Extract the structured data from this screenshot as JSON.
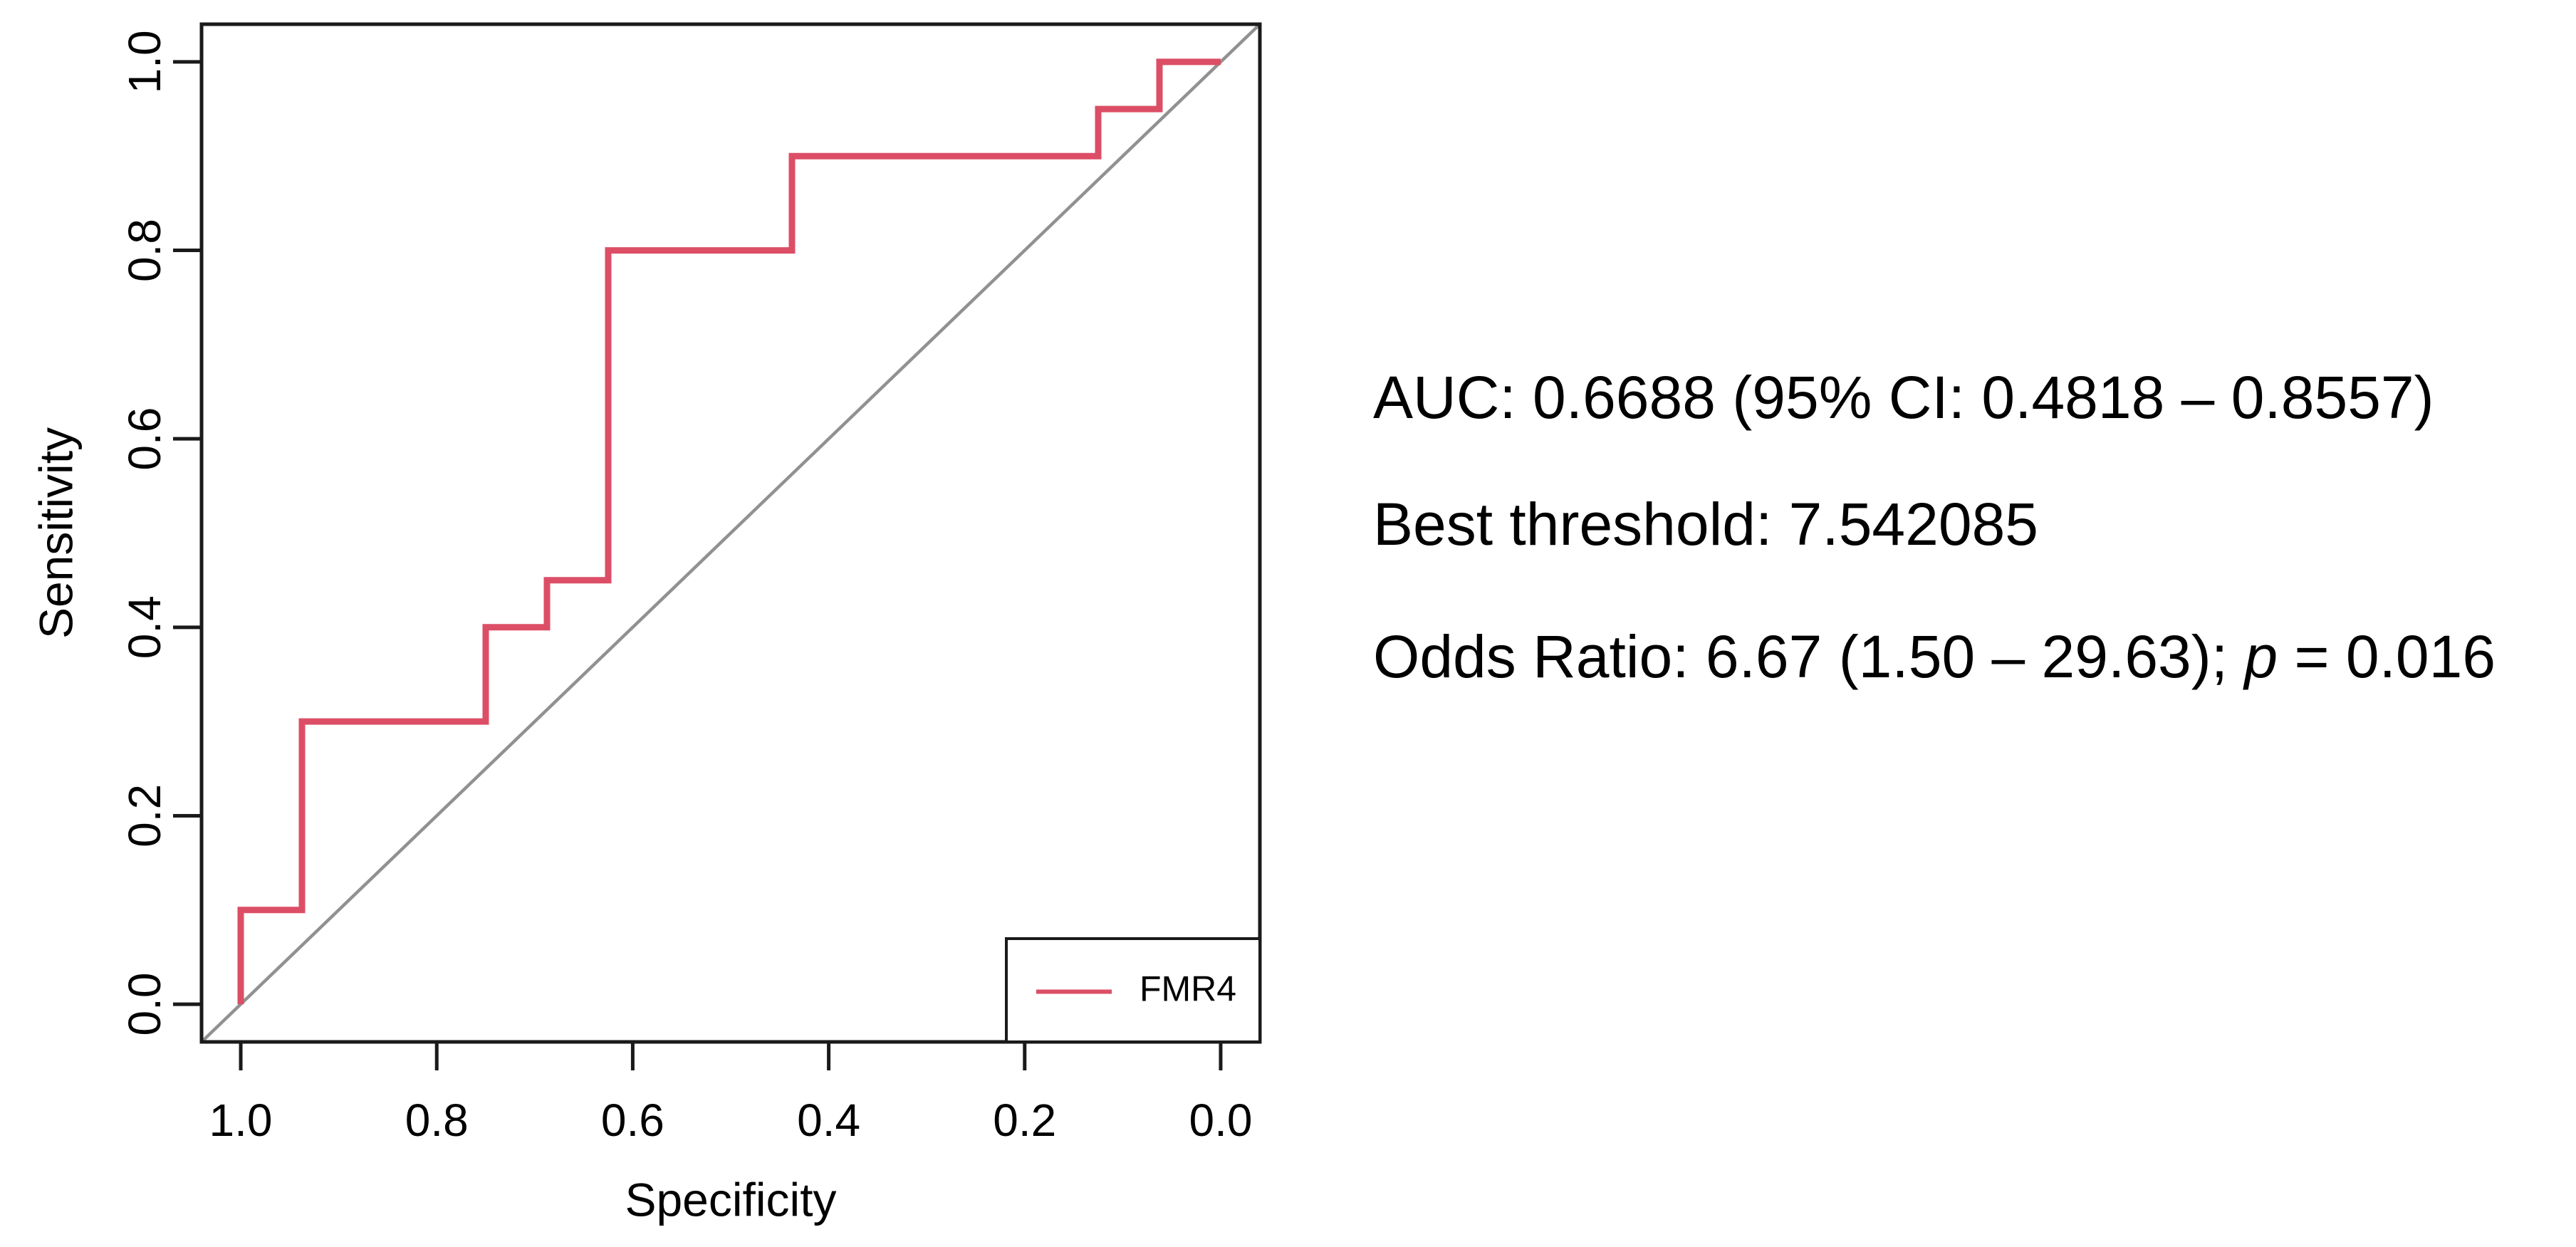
{
  "chart_data": {
    "type": "line",
    "subtype": "roc-step-curve",
    "title": "",
    "xlabel": "Specificity",
    "ylabel": "Sensitivity",
    "x_axis_reversed": true,
    "xlim": [
      1.0,
      0.0
    ],
    "ylim": [
      0.0,
      1.0
    ],
    "x_ticks": [
      1.0,
      0.8,
      0.6,
      0.4,
      0.2,
      0.0
    ],
    "x_tick_labels": [
      "1.0",
      "0.8",
      "0.6",
      "0.4",
      "0.2",
      "0.0"
    ],
    "y_ticks": [
      0.0,
      0.2,
      0.4,
      0.6,
      0.8,
      1.0
    ],
    "y_tick_labels": [
      "0.0",
      "0.2",
      "0.4",
      "0.6",
      "0.8",
      "1.0"
    ],
    "grid": false,
    "series": [
      {
        "name": "FMR4",
        "color": "#DC4E66",
        "points_specificity_sensitivity": [
          [
            1.0,
            0.0
          ],
          [
            1.0,
            0.1
          ],
          [
            0.9375,
            0.1
          ],
          [
            0.9375,
            0.3
          ],
          [
            0.75,
            0.3
          ],
          [
            0.75,
            0.4
          ],
          [
            0.6875,
            0.4
          ],
          [
            0.6875,
            0.45
          ],
          [
            0.625,
            0.45
          ],
          [
            0.625,
            0.8
          ],
          [
            0.4375,
            0.8
          ],
          [
            0.4375,
            0.9
          ],
          [
            0.125,
            0.9
          ],
          [
            0.125,
            0.95
          ],
          [
            0.0625,
            0.95
          ],
          [
            0.0625,
            1.0
          ],
          [
            0.0,
            1.0
          ]
        ]
      }
    ],
    "reference_line": {
      "name": "chance-diagonal",
      "from_specificity_sensitivity": [
        1.0,
        0.0
      ],
      "to_specificity_sensitivity": [
        0.0,
        1.0
      ],
      "color": "#919191"
    },
    "legend": {
      "position": "bottom-right",
      "entries": [
        {
          "label": "FMR4",
          "color": "#DC4E66"
        }
      ]
    }
  },
  "annotations": {
    "line1": "AUC: 0.6688 (95% CI: 0.4818 – 0.8557)",
    "line2": "Best threshold: 7.542085",
    "line3_prefix": "Odds Ratio: 6.67 (1.50 – 29.63); ",
    "line3_italic": "p",
    "line3_suffix": " = 0.016"
  },
  "colors": {
    "curve": "#DC4E66",
    "reference": "#919191",
    "axis": "#1A1A1A",
    "text": "#000000",
    "background": "#FFFFFF"
  }
}
